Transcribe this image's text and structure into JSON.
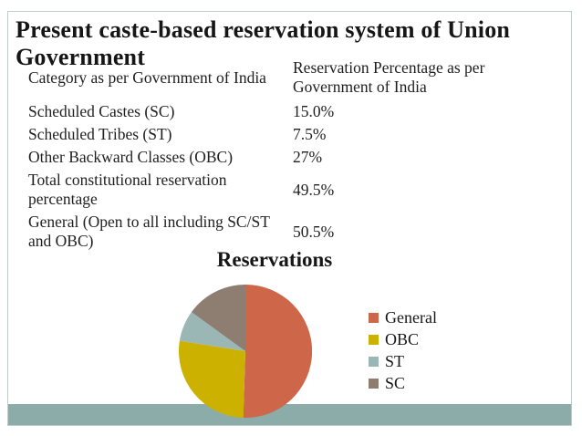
{
  "slide": {
    "title": "Present caste-based reservation system of Union Government",
    "table": {
      "headers": [
        "Category as per Government of India",
        "Reservation Percentage as per Government of India"
      ],
      "rows": [
        {
          "category": "Scheduled Castes (SC)",
          "percentage": "15.0%"
        },
        {
          "category": "Scheduled Tribes (ST)",
          "percentage": "7.5%"
        },
        {
          "category": "Other Backward Classes (OBC)",
          "percentage": "27%"
        },
        {
          "category": "Total constitutional reservation percentage",
          "percentage": "49.5%"
        },
        {
          "category": "General (Open to all including SC/ST and OBC)",
          "percentage": "50.5%"
        }
      ]
    },
    "colors": {
      "footer_band": "#8BACA9",
      "slide_border": "#C2CCC8",
      "text": "#1C1C1C"
    }
  },
  "chart_data": {
    "type": "pie",
    "title": "Reservations",
    "categories": [
      "General",
      "OBC",
      "ST",
      "SC"
    ],
    "values": [
      50.5,
      27,
      7.5,
      15
    ],
    "unit": "percent",
    "colors": [
      "#CE664A",
      "#CCB100",
      "#9BB7B5",
      "#8E7D71"
    ],
    "legend_position": "right",
    "start_angle_deg": 0,
    "direction": "clockwise"
  }
}
